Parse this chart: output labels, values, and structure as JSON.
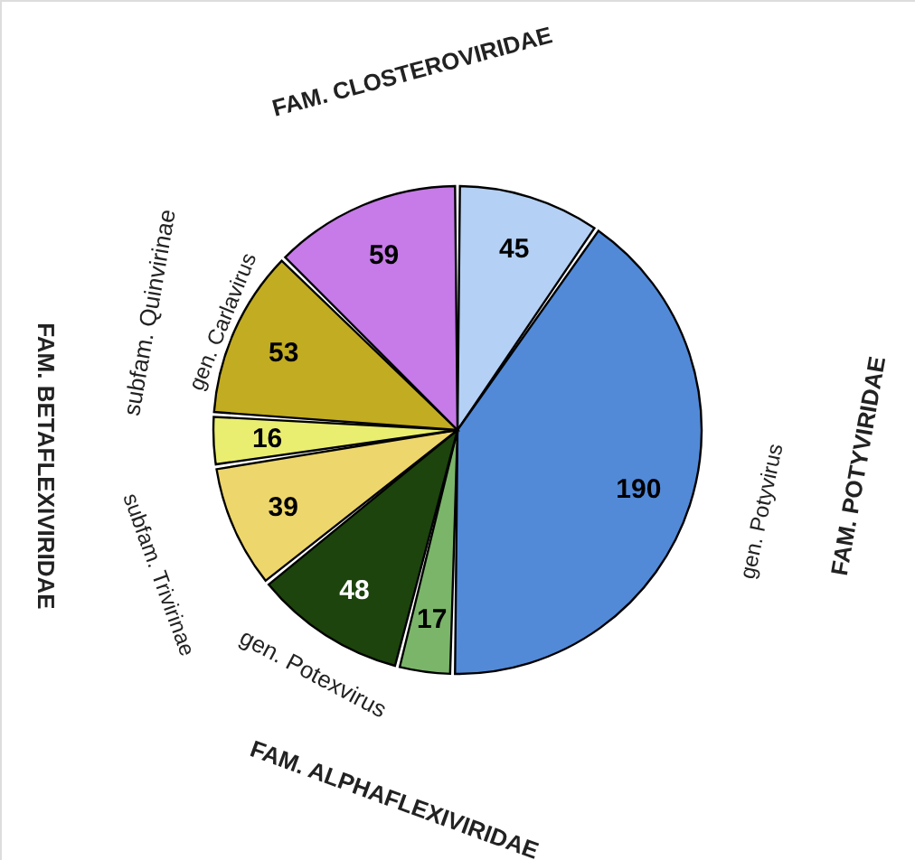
{
  "chart_data": {
    "type": "pie",
    "categories": [
      null,
      null,
      null,
      null,
      null,
      null,
      null,
      null
    ],
    "values": [
      45,
      190,
      17,
      48,
      39,
      16,
      53,
      59
    ],
    "colors": [
      "#b4d0f4",
      "#528ad8",
      "#7bb56a",
      "#1c440c",
      "#edd66c",
      "#eaee70",
      "#c2ac22",
      "#c67be8"
    ],
    "data_labels": true,
    "annotations": [
      "FAM. CLOSTEROVIRIDAE",
      "FAM. POTYVIRIDAE",
      "gen. Potyvirus",
      "FAM. ALPHAFLEXIVIRIDAE",
      "gen. Potexvirus",
      "subfam. Trivirinae",
      "FAM. BETAFLEXIVIRIDAE",
      "subfam. Quinvirinae",
      "gen. Carlavirus"
    ]
  }
}
